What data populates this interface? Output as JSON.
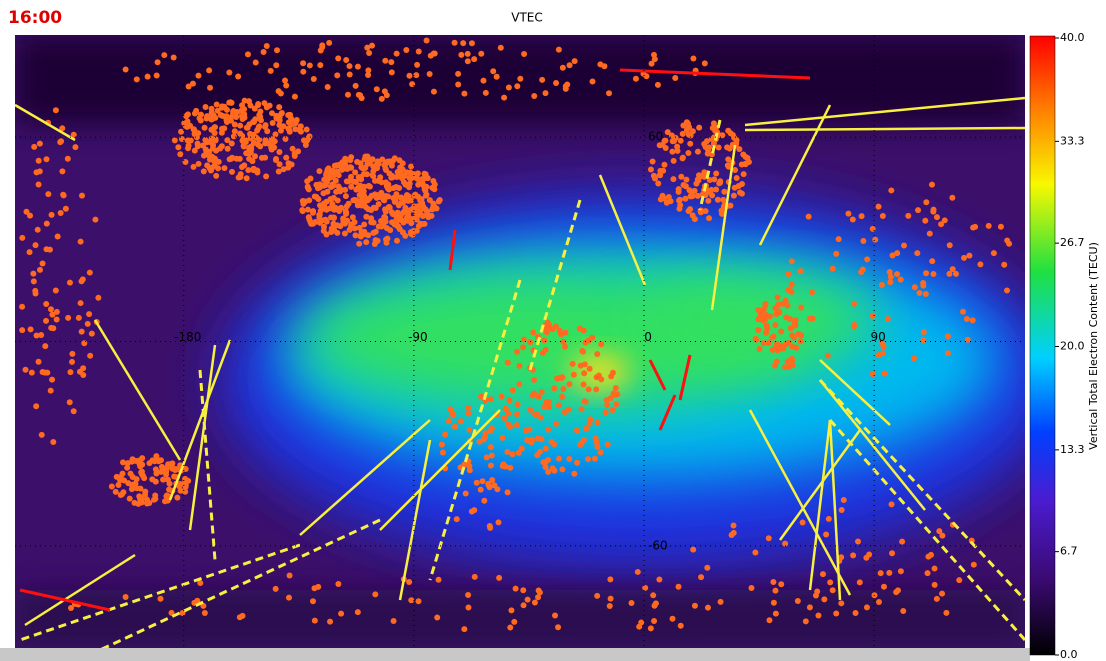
{
  "header": {
    "time": "16:00",
    "title": "VTEC"
  },
  "map": {
    "xlim": [
      -246,
      149
    ],
    "ylim": [
      -90,
      90
    ],
    "lon_ticks": [
      -180,
      -90,
      0,
      90
    ],
    "lat_ticks": [
      60,
      -60
    ]
  },
  "colorbar": {
    "label": "Vertical Total Electron Content (TECU)",
    "range": [
      0,
      40
    ],
    "ticks": [
      {
        "value": 0,
        "label": "0.0"
      },
      {
        "value": 6.7,
        "label": "6.7"
      },
      {
        "value": 13.3,
        "label": "13.3"
      },
      {
        "value": 20,
        "label": "20.0"
      },
      {
        "value": 26.7,
        "label": "26.7"
      },
      {
        "value": 33.3,
        "label": "33.3"
      },
      {
        "value": 40,
        "label": "40.0"
      }
    ]
  }
}
